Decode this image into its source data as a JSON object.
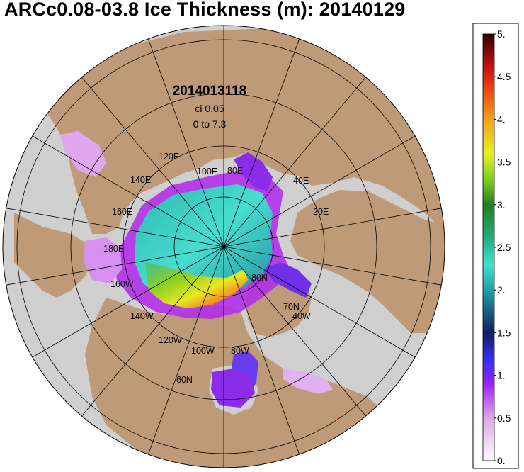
{
  "title": "ARCc0.08-03.8 Ice Thickness (m): 20140129",
  "map": {
    "timestamp": "2014013118",
    "contour_interval": "ci 0.05",
    "range_text": "0 to 7.3",
    "projection": "polar-stereographic-north",
    "colors": {
      "land": "#bf9a78",
      "ocean_no_ice": "#cfcfcf",
      "graticule": "#000000"
    },
    "longitude_labels": [
      "120E",
      "100E",
      "80E",
      "40E",
      "20E",
      "140E",
      "160E",
      "180E",
      "160W",
      "140W",
      "120W",
      "100W",
      "80W",
      "40W"
    ],
    "latitude_labels": [
      "80N",
      "70N",
      "60N"
    ]
  },
  "colorbar": {
    "labels": [
      "5.",
      "4.5",
      "4.",
      "3.5",
      "3.",
      "2.5",
      "2.",
      "1.5",
      "1.",
      "0.5",
      "0."
    ],
    "min": 0,
    "max": 5,
    "unit": "m",
    "stops": [
      {
        "v": 0.0,
        "c": "#fdfafd"
      },
      {
        "v": 0.5,
        "c": "#e0a6e8"
      },
      {
        "v": 0.9,
        "c": "#a020f0"
      },
      {
        "v": 1.2,
        "c": "#3030f0"
      },
      {
        "v": 1.5,
        "c": "#102060"
      },
      {
        "v": 2.0,
        "c": "#20a0a8"
      },
      {
        "v": 2.3,
        "c": "#40e0d0"
      },
      {
        "v": 2.6,
        "c": "#20b080"
      },
      {
        "v": 3.0,
        "c": "#208020"
      },
      {
        "v": 3.3,
        "c": "#80d020"
      },
      {
        "v": 3.6,
        "c": "#e8f020"
      },
      {
        "v": 4.0,
        "c": "#f0a020"
      },
      {
        "v": 4.3,
        "c": "#f05010"
      },
      {
        "v": 4.6,
        "c": "#d01010"
      },
      {
        "v": 5.0,
        "c": "#300000"
      }
    ]
  }
}
